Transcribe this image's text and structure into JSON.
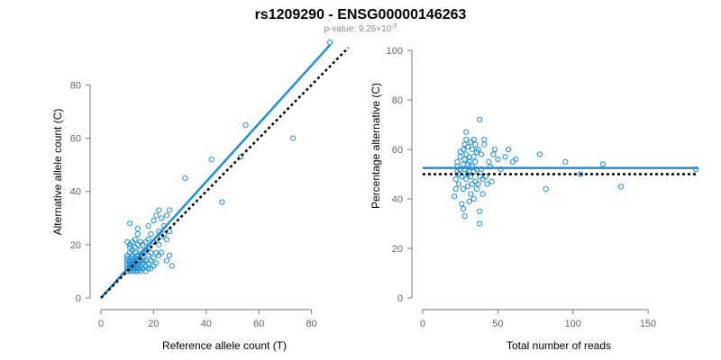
{
  "figure": {
    "title": "rs1209290 - ENSG00000146263",
    "subtitle": {
      "prefix": "p-value: 9.26×10",
      "exponent": "-3"
    }
  },
  "colors": {
    "points": "#1f8fd8",
    "fit_line": "#1f8fd8",
    "reference_line": "#000000",
    "axes": "#777777"
  },
  "chart_data": [
    {
      "type": "scatter",
      "xlabel": "Reference allele count (T)",
      "ylabel": "Alternative allele count (C)",
      "xlim": [
        0,
        88
      ],
      "ylim": [
        0,
        93
      ],
      "xticks": [
        0,
        20,
        40,
        60,
        80
      ],
      "yticks": [
        0,
        20,
        40,
        60,
        80
      ],
      "grid": false,
      "points": [
        [
          10,
          10
        ],
        [
          10,
          11
        ],
        [
          10,
          12
        ],
        [
          10,
          13
        ],
        [
          10,
          14
        ],
        [
          10,
          15
        ],
        [
          10,
          16
        ],
        [
          10,
          21
        ],
        [
          11,
          10
        ],
        [
          11,
          11
        ],
        [
          11,
          12
        ],
        [
          11,
          13
        ],
        [
          11,
          14
        ],
        [
          11,
          17
        ],
        [
          11,
          19
        ],
        [
          11,
          20
        ],
        [
          11,
          28
        ],
        [
          12,
          10
        ],
        [
          12,
          11
        ],
        [
          12,
          12
        ],
        [
          12,
          13
        ],
        [
          12,
          14
        ],
        [
          12,
          15
        ],
        [
          12,
          16
        ],
        [
          12,
          18
        ],
        [
          12,
          21
        ],
        [
          13,
          10
        ],
        [
          13,
          11
        ],
        [
          13,
          12
        ],
        [
          13,
          13
        ],
        [
          13,
          14
        ],
        [
          13,
          15
        ],
        [
          13,
          17
        ],
        [
          13,
          19
        ],
        [
          13,
          22
        ],
        [
          14,
          10
        ],
        [
          14,
          11
        ],
        [
          14,
          12
        ],
        [
          14,
          13
        ],
        [
          14,
          14
        ],
        [
          14,
          16
        ],
        [
          14,
          20
        ],
        [
          14,
          24
        ],
        [
          14,
          26
        ],
        [
          15,
          10
        ],
        [
          15,
          11
        ],
        [
          15,
          12
        ],
        [
          15,
          14
        ],
        [
          15,
          16
        ],
        [
          15,
          18
        ],
        [
          15,
          21
        ],
        [
          16,
          11
        ],
        [
          16,
          13
        ],
        [
          16,
          14
        ],
        [
          16,
          15
        ],
        [
          16,
          17
        ],
        [
          16,
          20
        ],
        [
          17,
          10
        ],
        [
          17,
          12
        ],
        [
          17,
          14
        ],
        [
          17,
          18
        ],
        [
          17,
          21
        ],
        [
          18,
          11
        ],
        [
          18,
          13
        ],
        [
          18,
          16
        ],
        [
          18,
          19
        ],
        [
          18,
          22
        ],
        [
          18,
          27
        ],
        [
          19,
          11
        ],
        [
          19,
          14
        ],
        [
          19,
          17
        ],
        [
          19,
          24
        ],
        [
          20,
          12
        ],
        [
          20,
          15
        ],
        [
          20,
          21
        ],
        [
          20,
          29
        ],
        [
          21,
          13
        ],
        [
          21,
          17
        ],
        [
          21,
          22
        ],
        [
          21,
          31
        ],
        [
          22,
          16
        ],
        [
          22,
          20
        ],
        [
          22,
          25
        ],
        [
          22,
          33
        ],
        [
          23,
          17
        ],
        [
          23,
          23
        ],
        [
          23,
          30
        ],
        [
          24,
          24
        ],
        [
          24,
          27
        ],
        [
          25,
          14
        ],
        [
          25,
          22
        ],
        [
          25,
          31
        ],
        [
          26,
          16
        ],
        [
          26,
          25
        ],
        [
          26,
          33
        ],
        [
          27,
          12
        ],
        [
          32,
          45
        ],
        [
          42,
          52
        ],
        [
          46,
          36
        ],
        [
          53,
          53
        ],
        [
          55,
          65
        ],
        [
          73,
          60
        ],
        [
          87,
          96
        ]
      ],
      "series": [
        {
          "type": "line",
          "x": [
            0,
            87
          ],
          "y": [
            0,
            95
          ]
        },
        {
          "type": "line",
          "x": [
            0,
            94
          ],
          "y": [
            0,
            94
          ]
        }
      ]
    },
    {
      "type": "scatter",
      "xlabel": "Total number of reads",
      "ylabel": "Percentage alternative (C)",
      "xlim": [
        0,
        183
      ],
      "ylim": [
        0,
        100
      ],
      "xticks": [
        0,
        50,
        100,
        150
      ],
      "yticks": [
        0,
        20,
        40,
        60,
        80,
        100
      ],
      "grid": false,
      "points": [
        [
          21,
          41
        ],
        [
          22,
          44
        ],
        [
          22,
          48
        ],
        [
          23,
          51
        ],
        [
          23,
          53
        ],
        [
          23,
          55
        ],
        [
          24,
          50
        ],
        [
          24,
          46
        ],
        [
          25,
          57
        ],
        [
          25,
          59
        ],
        [
          25,
          52
        ],
        [
          26,
          49
        ],
        [
          26,
          38
        ],
        [
          27,
          36
        ],
        [
          27,
          44
        ],
        [
          27,
          54
        ],
        [
          27,
          60
        ],
        [
          28,
          33
        ],
        [
          28,
          52
        ],
        [
          28,
          56
        ],
        [
          28,
          62
        ],
        [
          29,
          48
        ],
        [
          29,
          58
        ],
        [
          29,
          64
        ],
        [
          29,
          67
        ],
        [
          30,
          45
        ],
        [
          30,
          50
        ],
        [
          30,
          54
        ],
        [
          30,
          61
        ],
        [
          31,
          39
        ],
        [
          31,
          51
        ],
        [
          31,
          55
        ],
        [
          31,
          57
        ],
        [
          32,
          42
        ],
        [
          32,
          49
        ],
        [
          32,
          63
        ],
        [
          33,
          46
        ],
        [
          33,
          53
        ],
        [
          33,
          60
        ],
        [
          34,
          40
        ],
        [
          34,
          51
        ],
        [
          34,
          57
        ],
        [
          34,
          64
        ],
        [
          35,
          47
        ],
        [
          35,
          55
        ],
        [
          35,
          62
        ],
        [
          36,
          44
        ],
        [
          36,
          52
        ],
        [
          36,
          59
        ],
        [
          37,
          46
        ],
        [
          37,
          60
        ],
        [
          38,
          30
        ],
        [
          38,
          35
        ],
        [
          38,
          49
        ],
        [
          38,
          72
        ],
        [
          39,
          52
        ],
        [
          39,
          58
        ],
        [
          40,
          42
        ],
        [
          40,
          48
        ],
        [
          41,
          62
        ],
        [
          41,
          64
        ],
        [
          42,
          49
        ],
        [
          43,
          46
        ],
        [
          44,
          55
        ],
        [
          45,
          53
        ],
        [
          46,
          47
        ],
        [
          47,
          58
        ],
        [
          48,
          60
        ],
        [
          50,
          56
        ],
        [
          52,
          52
        ],
        [
          55,
          57
        ],
        [
          57,
          60
        ],
        [
          60,
          55
        ],
        [
          62,
          56
        ],
        [
          78,
          58
        ],
        [
          82,
          44
        ],
        [
          95,
          55
        ],
        [
          105,
          50
        ],
        [
          120,
          54
        ],
        [
          132,
          45
        ],
        [
          182,
          52
        ]
      ],
      "series": [
        {
          "type": "hline",
          "y": 52.5
        },
        {
          "type": "hline",
          "y": 50
        }
      ]
    }
  ]
}
